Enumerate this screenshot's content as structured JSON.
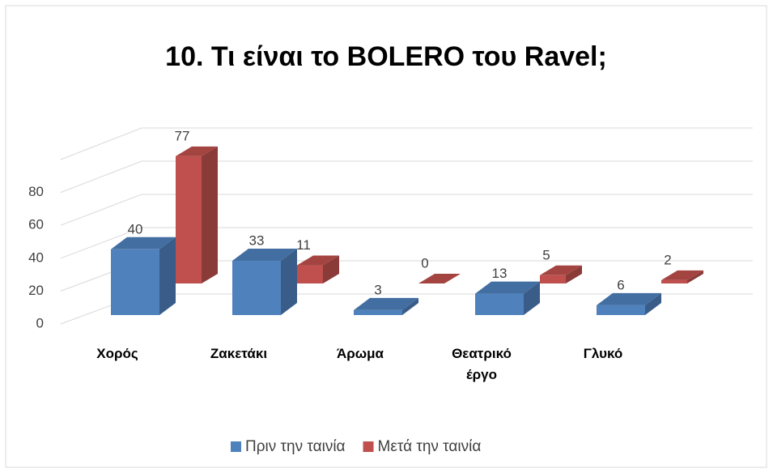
{
  "chart_data": {
    "type": "bar3d",
    "title": "10. Τι είναι το BOLERO  του Ravel;",
    "categories": [
      "Χορός",
      "Ζακετάκι",
      "Άρωμα",
      "Θεατρικό έργο",
      "Γλυκό"
    ],
    "series": [
      {
        "name": "Πριν την ταινία",
        "color": "#4f81bd",
        "values": [
          40,
          33,
          3,
          13,
          6
        ]
      },
      {
        "name": "Μετά την ταινία",
        "color": "#c0504d",
        "values": [
          77,
          11,
          0,
          5,
          2
        ]
      }
    ],
    "ylim": [
      0,
      100
    ],
    "yticks": [
      0,
      20,
      40,
      60,
      80
    ],
    "grid": true,
    "legend": "bottom"
  }
}
